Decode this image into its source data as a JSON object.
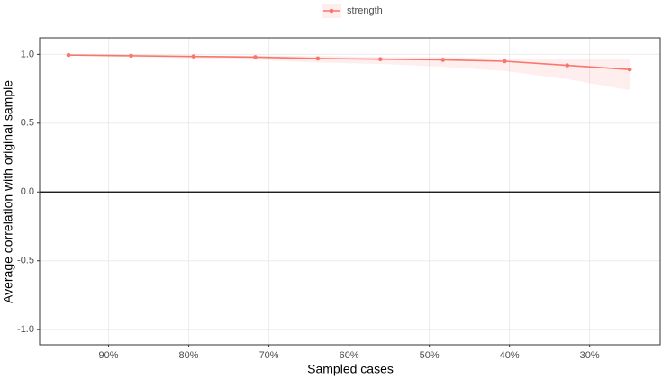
{
  "chart_data": {
    "type": "line",
    "x_label": "Sampled cases",
    "y_label": "Average correlation with original sample",
    "x": [
      95,
      87.2,
      79.4,
      71.7,
      63.9,
      56.1,
      48.3,
      40.6,
      32.8,
      25
    ],
    "series": [
      {
        "name": "strength",
        "color": "#f8766d",
        "values": [
          0.995,
          0.99,
          0.985,
          0.98,
          0.97,
          0.965,
          0.96,
          0.95,
          0.92,
          0.89
        ],
        "lower": [
          0.99,
          0.98,
          0.97,
          0.96,
          0.94,
          0.93,
          0.91,
          0.88,
          0.82,
          0.74
        ],
        "upper": [
          1.0,
          1.0,
          0.99,
          0.99,
          0.99,
          0.98,
          0.98,
          0.97,
          0.97,
          0.97
        ]
      }
    ],
    "xlim": [
      98.6,
      21.2
    ],
    "ylim": [
      -1.11,
      1.12
    ],
    "xticks": [
      {
        "value": 90,
        "label": "90%"
      },
      {
        "value": 80,
        "label": "80%"
      },
      {
        "value": 70,
        "label": "70%"
      },
      {
        "value": 60,
        "label": "60%"
      },
      {
        "value": 50,
        "label": "50%"
      },
      {
        "value": 40,
        "label": "40%"
      },
      {
        "value": 30,
        "label": "30%"
      }
    ],
    "yticks": [
      {
        "value": -1,
        "label": "-1.0"
      },
      {
        "value": -0.5,
        "label": "-0.5"
      },
      {
        "value": 0,
        "label": "0.0"
      },
      {
        "value": 0.5,
        "label": "0.5"
      },
      {
        "value": 1,
        "label": "1.0"
      }
    ],
    "hline": 0,
    "grid": true,
    "legend": "top"
  }
}
